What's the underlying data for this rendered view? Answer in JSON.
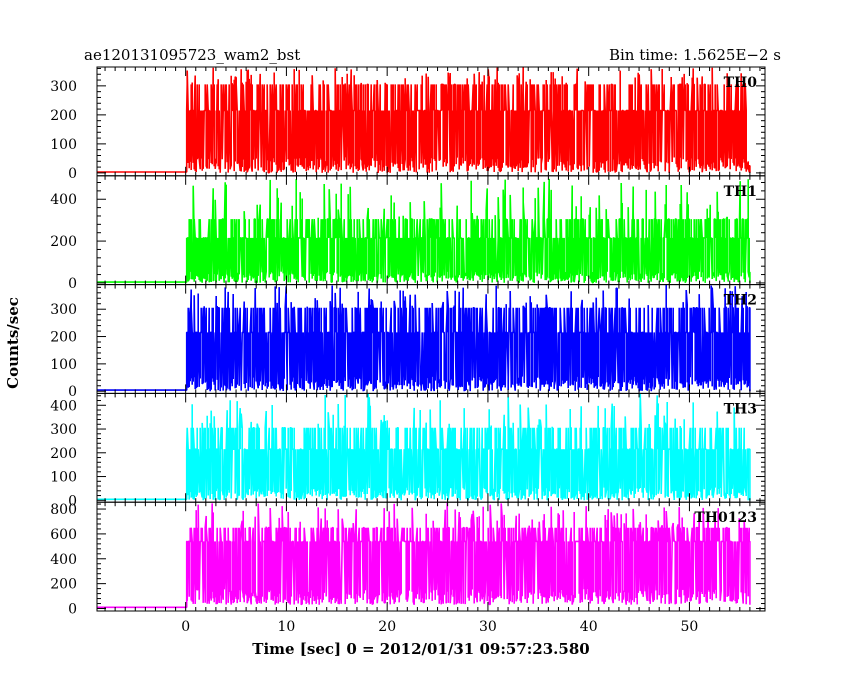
{
  "header": {
    "title": "ae120131095723_wam2_bst",
    "bin_time": "Bin time: 1.5625E−2 s"
  },
  "axes": {
    "xlabel": "Time [sec] 0 = 2012/01/31 09:57:23.580",
    "ylabel": "Counts/sec"
  },
  "chart_data": {
    "type": "line",
    "title": "ae120131095723_wam2_bst",
    "subtitle": "Bin time: 1.5625E−2 s",
    "xlabel": "Time [sec] 0 = 2012/01/31 09:57:23.580",
    "ylabel": "Counts/sec",
    "xlim": [
      -8.8,
      57.5
    ],
    "x_ticks": [
      0,
      10,
      20,
      30,
      40,
      50
    ],
    "bin_time": 0.015625,
    "data_start": -8.8,
    "data_jump": 0.1,
    "data_end": 56.0,
    "panels": [
      {
        "name": "TH0",
        "color": "#ff0000",
        "ylim": [
          -10,
          365
        ],
        "y_ticks": [
          0,
          100,
          200,
          300
        ],
        "pre_level": 3,
        "base_level": 0,
        "main_level": 215,
        "step_level": 305,
        "max_level": 365
      },
      {
        "name": "TH1",
        "color": "#00ff00",
        "ylim": [
          -8,
          512
        ],
        "y_ticks": [
          0,
          200,
          400
        ],
        "pre_level": 4,
        "base_level": 0,
        "main_level": 215,
        "step_level": 305,
        "max_level": 500
      },
      {
        "name": "TH2",
        "color": "#0000ff",
        "ylim": [
          -8,
          390
        ],
        "y_ticks": [
          0,
          100,
          200,
          300
        ],
        "pre_level": 4,
        "base_level": 0,
        "main_level": 215,
        "step_level": 305,
        "max_level": 390
      },
      {
        "name": "TH3",
        "color": "#00ffff",
        "ylim": [
          -8,
          450
        ],
        "y_ticks": [
          0,
          100,
          200,
          300,
          400
        ],
        "pre_level": 4,
        "base_level": 0,
        "main_level": 215,
        "step_level": 305,
        "max_level": 450
      },
      {
        "name": "TH0123",
        "color": "#ff00ff",
        "ylim": [
          -20,
          855
        ],
        "y_ticks": [
          0,
          200,
          400,
          600,
          800
        ],
        "pre_level": 10,
        "base_level": 30,
        "main_level": 540,
        "step_level": 650,
        "max_level": 850
      }
    ]
  }
}
